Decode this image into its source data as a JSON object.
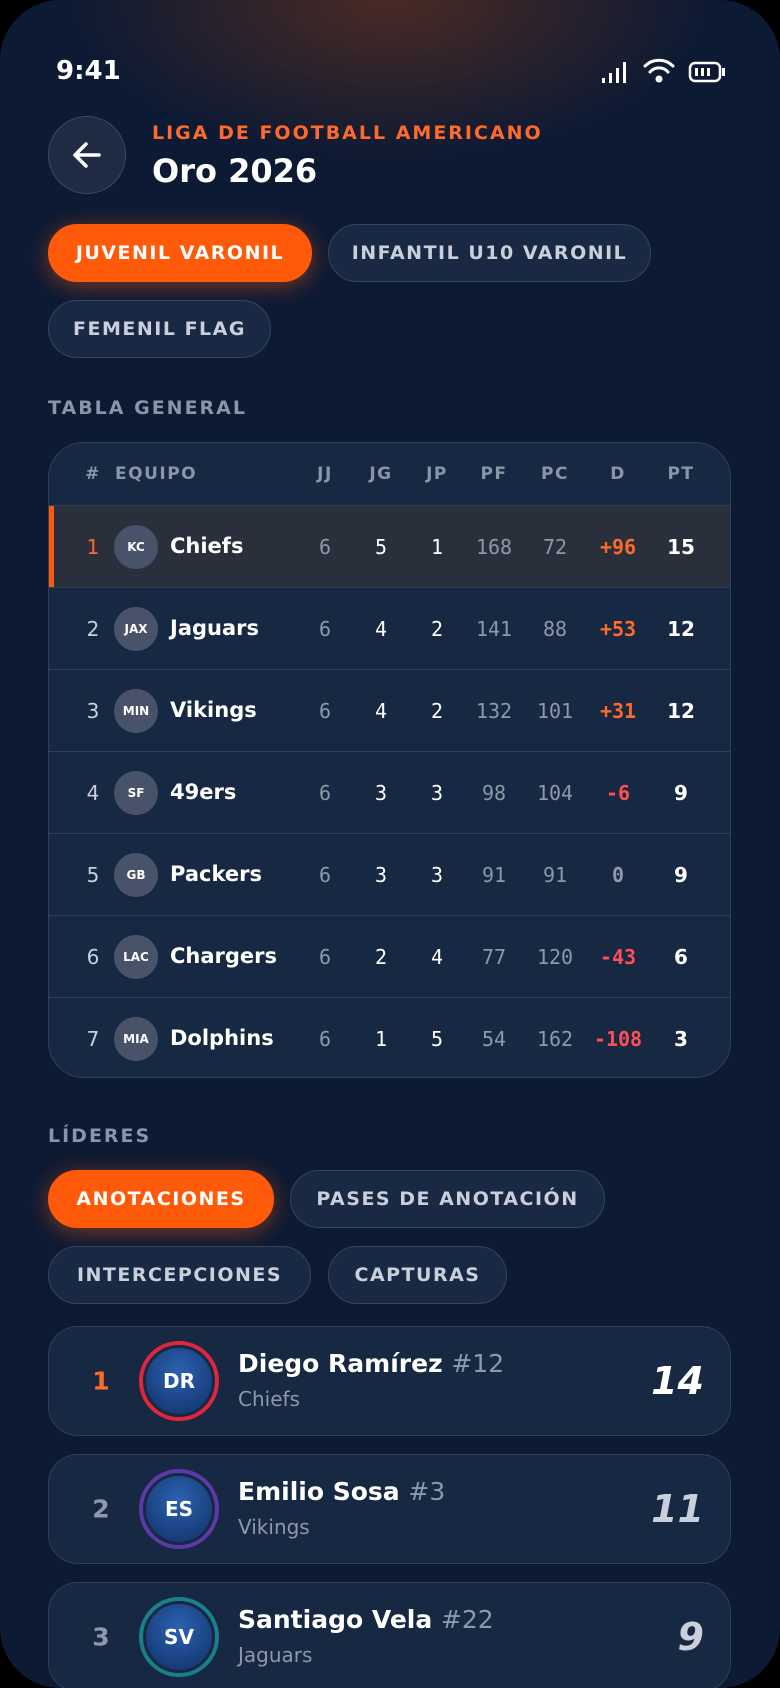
{
  "status": {
    "time": "9:41"
  },
  "header": {
    "league": "LIGA DE FOOTBALL AMERICANO",
    "title": "Oro 2026"
  },
  "divisions": [
    "JUVENIL VARONIL",
    "INFANTIL U10 VARONIL",
    "FEMENIL FLAG"
  ],
  "standings": {
    "title": "TABLA GENERAL",
    "columns": [
      "#",
      "EQUIPO",
      "JJ",
      "JG",
      "JP",
      "PF",
      "PC",
      "D",
      "PT"
    ],
    "rows": [
      [
        1,
        "KC",
        "Chiefs",
        6,
        5,
        1,
        168,
        72,
        "+96",
        15
      ],
      [
        2,
        "JAX",
        "Jaguars",
        6,
        4,
        2,
        141,
        88,
        "+53",
        12
      ],
      [
        3,
        "MIN",
        "Vikings",
        6,
        4,
        2,
        132,
        101,
        "+31",
        12
      ],
      [
        4,
        "SF",
        "49ers",
        6,
        3,
        3,
        98,
        104,
        "-6",
        9
      ],
      [
        5,
        "GB",
        "Packers",
        6,
        3,
        3,
        91,
        91,
        "0",
        9
      ],
      [
        6,
        "LAC",
        "Chargers",
        6,
        2,
        4,
        77,
        120,
        "-43",
        6
      ],
      [
        7,
        "MIA",
        "Dolphins",
        6,
        1,
        5,
        54,
        162,
        "-108",
        3
      ]
    ]
  },
  "leaders": {
    "title": "LÍDERES",
    "categories": [
      "ANOTACIONES",
      "PASES DE ANOTACIÓN",
      "INTERCEPCIONES",
      "CAPTURAS"
    ],
    "players": [
      {
        "rank": 1,
        "initials": "DR",
        "name": "Diego Ramírez",
        "number": "#12",
        "team": "Chiefs",
        "value": 14
      },
      {
        "rank": 2,
        "initials": "ES",
        "name": "Emilio Sosa",
        "number": "#3",
        "team": "Vikings",
        "value": 11
      },
      {
        "rank": 3,
        "initials": "SV",
        "name": "Santiago Vela",
        "number": "#22",
        "team": "Jaguars",
        "value": 9
      }
    ]
  }
}
